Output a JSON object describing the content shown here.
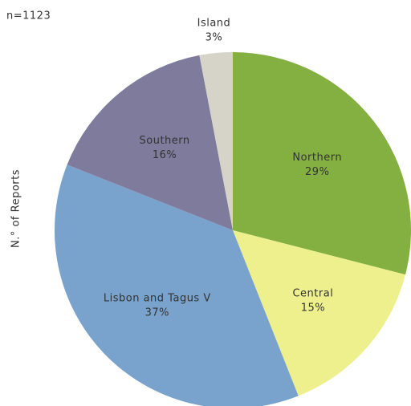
{
  "chart_data": {
    "type": "pie",
    "annotation": "n=1123",
    "ylabel": "N.° of Reports",
    "categories": [
      "Northern",
      "Central",
      "Lisbon and Tagus V",
      "Southern",
      "Island"
    ],
    "values": [
      29,
      15,
      37,
      16,
      3
    ],
    "value_labels": [
      "29%",
      "15%",
      "37%",
      "16%",
      "3%"
    ],
    "colors": [
      "#84b041",
      "#eef08e",
      "#79a3cc",
      "#7e7b9d",
      "#d6d4c9"
    ]
  }
}
